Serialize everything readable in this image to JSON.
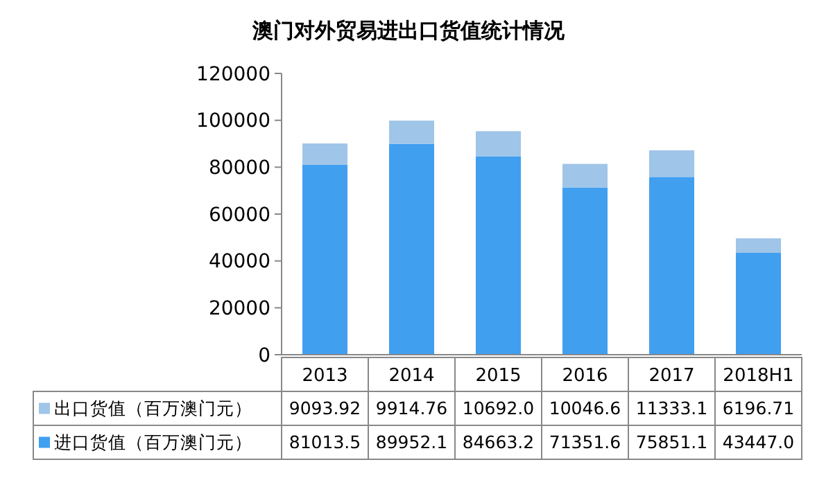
{
  "chart_data": {
    "type": "bar",
    "title": "澳门对外贸易进出口货值统计情况",
    "stacked": true,
    "legend": "bottom",
    "categories": [
      "2013",
      "2014",
      "2015",
      "2016",
      "2017",
      "2018H1"
    ],
    "series": [
      {
        "name": "进口货值（百万澳门元）",
        "color": "#419ff0",
        "values": [
          81013.5,
          89952.1,
          84663.2,
          71351.6,
          75851.1,
          43447.0
        ],
        "value_labels": [
          "81013.5",
          "89952.1",
          "84663.2",
          "71351.6",
          "75851.1",
          "43447.0"
        ]
      },
      {
        "name": "出口货值（百万澳门元）",
        "color": "#9fc5e8",
        "values": [
          9093.92,
          9914.76,
          10692.0,
          10046.6,
          11333.1,
          6196.71
        ],
        "value_labels": [
          "9093.92",
          "9914.76",
          "10692.0",
          "10046.6",
          "11333.1",
          "6196.71"
        ]
      }
    ],
    "ylim": [
      0,
      120000
    ],
    "yticks": [
      0,
      20000,
      40000,
      60000,
      80000,
      100000,
      120000
    ]
  }
}
